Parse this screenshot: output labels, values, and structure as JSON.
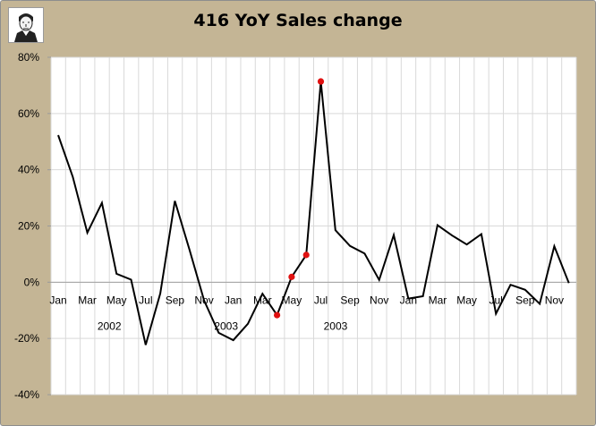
{
  "chart_data": {
    "type": "line",
    "title": "416 YoY Sales change",
    "xlabel": "",
    "ylabel": "",
    "ylim": [
      -40,
      80
    ],
    "yticks": [
      "80%",
      "60%",
      "40%",
      "20%",
      "0%",
      "-20%",
      "-40%"
    ],
    "grid": true,
    "legend": "none",
    "x_tick_labels": [
      "Jan",
      "Mar",
      "May",
      "Jul",
      "Sep",
      "Nov",
      "Jan",
      "Mar",
      "May",
      "Jul",
      "Sep",
      "Nov",
      "Jan",
      "Mar",
      "May",
      "Jul",
      "Sep",
      "Nov"
    ],
    "year_labels": [
      "2002",
      "2003",
      "2003"
    ],
    "series": [
      {
        "values": [
          52.3,
          37.5,
          17.6,
          28.2,
          3.0,
          0.9,
          -22.3,
          -4.0,
          28.9,
          11.5,
          -6.5,
          -18.0,
          -20.6,
          -14.8,
          -4.1,
          -11.7,
          1.9,
          9.7,
          71.4,
          18.5,
          12.9,
          10.2,
          0.8,
          16.8,
          -5.8,
          -5.0,
          20.3,
          16.6,
          13.4,
          17.1,
          -11.2,
          -0.9,
          -2.7,
          -7.7,
          12.8,
          -0.3
        ],
        "highlighted_points": [
          {
            "index": 15,
            "value": -11.7
          },
          {
            "index": 16,
            "value": 1.9
          },
          {
            "index": 17,
            "value": 9.7
          },
          {
            "index": 18,
            "value": 71.4
          }
        ]
      }
    ],
    "colors": {
      "line": "#000000",
      "marker": "#e01010",
      "grid": "#d9d9d9",
      "frame": "#c4b595"
    }
  },
  "logo_icon": "portrait-icon"
}
